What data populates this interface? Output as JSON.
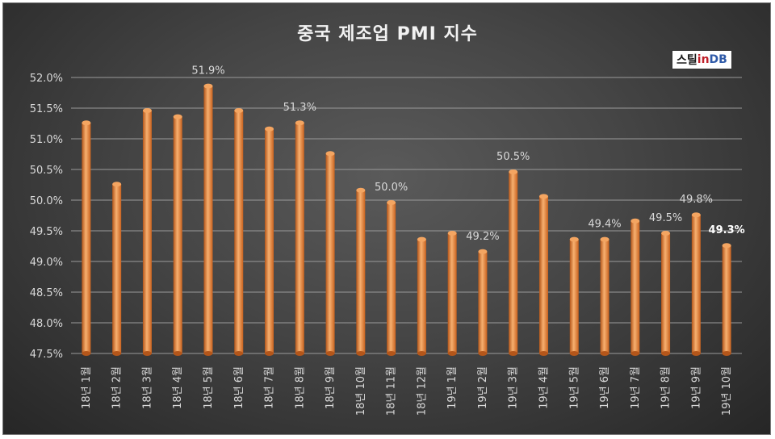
{
  "logo": {
    "part1": "스틸",
    "part2": "in",
    "part3": "DB"
  },
  "chart_data": {
    "type": "bar",
    "title": "중국 제조업 PMI 지수",
    "xlabel": "",
    "ylabel": "",
    "ylim": [
      47.5,
      52.0
    ],
    "yticks": [
      "47.5%",
      "48.0%",
      "48.5%",
      "49.0%",
      "49.5%",
      "50.0%",
      "50.5%",
      "51.0%",
      "51.5%",
      "52.0%"
    ],
    "categories": [
      "18년 1월",
      "18년 2월",
      "18년 3월",
      "18년 4월",
      "18년 5월",
      "18년 6월",
      "18년 7월",
      "18년 8월",
      "18년 9월",
      "18년 10월",
      "18년 11월",
      "18년 12월",
      "19년 1월",
      "19년 2월",
      "19년 3월",
      "19년 4월",
      "19년 5월",
      "19년 6월",
      "19년 7월",
      "19년 8월",
      "19년 9월",
      "19년 10월"
    ],
    "values": [
      51.3,
      50.3,
      51.5,
      51.4,
      51.9,
      51.5,
      51.2,
      51.3,
      50.8,
      50.2,
      50.0,
      49.4,
      49.5,
      49.2,
      50.5,
      50.1,
      49.4,
      49.4,
      49.7,
      49.5,
      49.8,
      49.3
    ],
    "data_labels": [
      {
        "index": 4,
        "text": "51.9%"
      },
      {
        "index": 7,
        "text": "51.3%"
      },
      {
        "index": 10,
        "text": "50.0%"
      },
      {
        "index": 13,
        "text": "49.2%"
      },
      {
        "index": 14,
        "text": "50.5%"
      },
      {
        "index": 17,
        "text": "49.4%"
      },
      {
        "index": 19,
        "text": "49.5%"
      },
      {
        "index": 20,
        "text": "49.8%"
      },
      {
        "index": 21,
        "text": "49.3%",
        "bold": true
      }
    ],
    "grid": true,
    "colors": {
      "bar": "#e07a2e",
      "bar_highlight": "#f7b070",
      "grid": "#9a9a9a",
      "text": "#d9d9d9"
    }
  }
}
